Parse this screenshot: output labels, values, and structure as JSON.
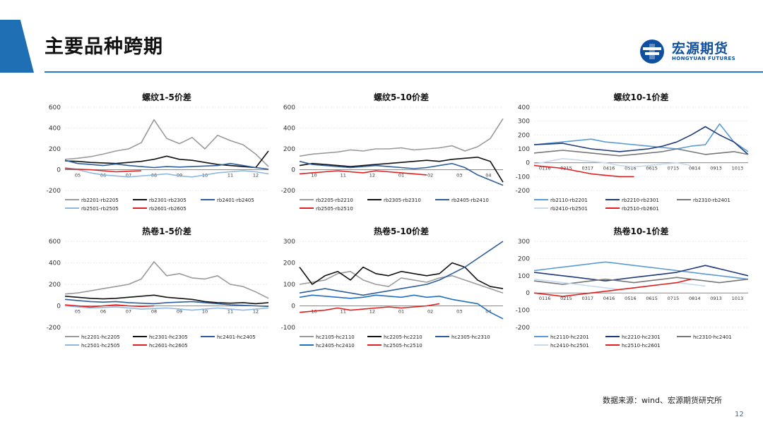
{
  "page": {
    "title": "主要品种跨期",
    "logo_cn": "宏源期货",
    "logo_en": "HONGYUAN FUTURES",
    "source": "数据来源：wind、宏源期货研究所",
    "page_number": "12",
    "brand_color": "#1f6fb5"
  },
  "chart_data": [
    {
      "id": "rb15",
      "type": "line",
      "title": "螺纹1-5价差",
      "ylim": [
        -200,
        600
      ],
      "yticks": [
        -200,
        0,
        200,
        400,
        600
      ],
      "xticks": [
        "05",
        "06",
        "07",
        "08",
        "09",
        "10",
        "11",
        "12"
      ],
      "series": [
        {
          "name": "rb2201-rb2205",
          "color": "#9a9a9a",
          "values": [
            100,
            110,
            125,
            150,
            180,
            200,
            260,
            480,
            300,
            250,
            310,
            200,
            330,
            280,
            240,
            150,
            30
          ]
        },
        {
          "name": "rb2301-rb2305",
          "color": "#111111",
          "values": [
            85,
            80,
            70,
            65,
            60,
            70,
            80,
            100,
            130,
            100,
            90,
            70,
            50,
            40,
            30,
            20,
            180
          ]
        },
        {
          "name": "rb2401-rb2405",
          "color": "#2f5d9e",
          "values": [
            90,
            60,
            50,
            40,
            55,
            40,
            30,
            20,
            30,
            25,
            30,
            35,
            40,
            60,
            40,
            20,
            5
          ]
        },
        {
          "name": "rb2501-rb2505",
          "color": "#8fb8e0",
          "values": [
            20,
            0,
            -30,
            -50,
            -60,
            -70,
            -60,
            -50,
            -40,
            -60,
            -70,
            -50,
            -30,
            -20,
            -10,
            -20,
            -40
          ]
        },
        {
          "name": "rb2601-rb2605",
          "color": "#e02020",
          "values": [
            10,
            5,
            0,
            -10,
            -20,
            -15,
            -10
          ]
        }
      ]
    },
    {
      "id": "rb510",
      "type": "line",
      "title": "螺纹5-10价差",
      "ylim": [
        -200,
        600
      ],
      "yticks": [
        -200,
        0,
        200,
        400,
        600
      ],
      "xticks": [
        "10",
        "11",
        "12",
        "01",
        "02",
        "03",
        "04"
      ],
      "series": [
        {
          "name": "rb2205-rb2210",
          "color": "#9a9a9a",
          "values": [
            130,
            150,
            160,
            170,
            190,
            180,
            200,
            200,
            210,
            190,
            200,
            210,
            230,
            180,
            220,
            300,
            490
          ]
        },
        {
          "name": "rb2305-rb2310",
          "color": "#111111",
          "values": [
            40,
            60,
            50,
            40,
            30,
            40,
            50,
            60,
            70,
            80,
            90,
            80,
            100,
            110,
            120,
            80,
            -120
          ]
        },
        {
          "name": "rb2405-rb2410",
          "color": "#2f5d9e",
          "values": [
            80,
            50,
            40,
            30,
            20,
            30,
            40,
            30,
            20,
            10,
            20,
            40,
            60,
            20,
            -50,
            -100,
            -150
          ]
        },
        {
          "name": "rb2505-rb2510",
          "color": "#e02020",
          "values": [
            -40,
            -30,
            -20,
            -10,
            -20,
            -30,
            -10,
            -20,
            -30,
            -40,
            -50
          ]
        }
      ]
    },
    {
      "id": "rb101",
      "type": "line",
      "title": "螺纹10-1价差",
      "ylim": [
        -200,
        400
      ],
      "yticks": [
        -200,
        -100,
        0,
        100,
        200,
        300,
        400
      ],
      "xticks": [
        "0116",
        "0215",
        "0317",
        "0416",
        "0516",
        "0615",
        "0715",
        "0814",
        "0913",
        "1013"
      ],
      "series": [
        {
          "name": "rb2110-rb2201",
          "color": "#5b9bd5",
          "values": [
            130,
            140,
            150,
            160,
            170,
            150,
            140,
            130,
            120,
            110,
            100,
            120,
            130,
            280,
            150,
            80
          ]
        },
        {
          "name": "rb2210-rb2301",
          "color": "#1f3a7a",
          "values": [
            130,
            135,
            140,
            120,
            100,
            90,
            80,
            90,
            100,
            120,
            150,
            200,
            260,
            200,
            150,
            60
          ]
        },
        {
          "name": "rb2310-rb2401",
          "color": "#777777",
          "values": [
            70,
            80,
            90,
            80,
            70,
            60,
            50,
            60,
            70,
            80,
            100,
            80,
            60,
            70,
            80,
            60
          ]
        },
        {
          "name": "rb2410-rb2501",
          "color": "#c7d9ee",
          "values": [
            -10,
            10,
            30,
            20,
            10,
            0,
            -20,
            -30,
            -20,
            -10,
            0,
            -20
          ]
        },
        {
          "name": "rb2510-rb2601",
          "color": "#e02020",
          "values": [
            -20,
            -30,
            -40,
            -60,
            -80,
            -90,
            -100,
            -100
          ]
        }
      ]
    },
    {
      "id": "hc15",
      "type": "line",
      "title": "热卷1-5价差",
      "ylim": [
        -200,
        600
      ],
      "yticks": [
        -200,
        0,
        200,
        400,
        600
      ],
      "xticks": [
        "05",
        "06",
        "07",
        "08",
        "09",
        "10",
        "11",
        "12"
      ],
      "series": [
        {
          "name": "hc2201-hc2205",
          "color": "#9a9a9a",
          "values": [
            110,
            120,
            140,
            160,
            180,
            200,
            250,
            410,
            280,
            300,
            260,
            250,
            280,
            200,
            180,
            130,
            70
          ]
        },
        {
          "name": "hc2301-hc2305",
          "color": "#111111",
          "values": [
            90,
            80,
            70,
            65,
            70,
            80,
            90,
            100,
            80,
            70,
            60,
            40,
            30,
            25,
            30,
            20,
            30
          ]
        },
        {
          "name": "hc2401-hc2405",
          "color": "#2f5d9e",
          "values": [
            60,
            50,
            40,
            35,
            40,
            30,
            25,
            20,
            30,
            35,
            40,
            30,
            20,
            10,
            5,
            0,
            -5
          ]
        },
        {
          "name": "hc2501-hc2505",
          "color": "#8fb8e0",
          "values": [
            0,
            -10,
            -20,
            -15,
            -10,
            -20,
            -30,
            -25,
            -20,
            -30,
            -40,
            -30,
            -20,
            -30,
            -40,
            -30,
            -20
          ]
        },
        {
          "name": "hc2601-hc2605",
          "color": "#e02020",
          "values": [
            10,
            0,
            -10,
            0,
            10,
            0,
            -5,
            0
          ]
        }
      ]
    },
    {
      "id": "hc510",
      "type": "line",
      "title": "热卷5-10价差",
      "ylim": [
        -100,
        300
      ],
      "yticks": [
        -100,
        0,
        100,
        200,
        300
      ],
      "xticks": [
        "10",
        "11",
        "12",
        "01",
        "02",
        "03",
        "04"
      ],
      "series": [
        {
          "name": "hc2105-hc2110",
          "color": "#9a9a9a",
          "values": [
            100,
            110,
            120,
            150,
            160,
            120,
            100,
            90,
            130,
            120,
            110,
            130,
            140,
            120,
            100,
            80,
            60
          ]
        },
        {
          "name": "hc2205-hc2210",
          "color": "#111111",
          "values": [
            180,
            100,
            140,
            160,
            120,
            180,
            150,
            140,
            160,
            150,
            140,
            150,
            200,
            180,
            120,
            90,
            80
          ]
        },
        {
          "name": "hc2305-hc2310",
          "color": "#2f5d9e",
          "values": [
            60,
            70,
            80,
            70,
            60,
            50,
            60,
            70,
            80,
            90,
            100,
            120,
            150,
            180,
            220,
            260,
            300
          ]
        },
        {
          "name": "hc2405-hc2410",
          "color": "#1f70c0",
          "values": [
            40,
            50,
            45,
            40,
            35,
            40,
            50,
            45,
            40,
            50,
            40,
            45,
            30,
            20,
            10,
            -30,
            -60
          ]
        },
        {
          "name": "hc2505-hc2510",
          "color": "#e02020",
          "values": [
            -30,
            -25,
            -20,
            -10,
            -20,
            -15,
            -10,
            -5,
            -10,
            -5,
            0,
            10
          ]
        }
      ]
    },
    {
      "id": "hc101",
      "type": "line",
      "title": "热卷10-1价差",
      "ylim": [
        -200,
        300
      ],
      "yticks": [
        -200,
        -100,
        0,
        100,
        200,
        300
      ],
      "xticks": [
        "0116",
        "0215",
        "0317",
        "0416",
        "0516",
        "0615",
        "0715",
        "0814",
        "0913",
        "1013"
      ],
      "series": [
        {
          "name": "hc2110-hc2201",
          "color": "#5b9bd5",
          "values": [
            130,
            140,
            150,
            160,
            170,
            180,
            170,
            160,
            150,
            140,
            130,
            120,
            110,
            100,
            90,
            80
          ]
        },
        {
          "name": "hc2210-hc2301",
          "color": "#1f3a7a",
          "values": [
            120,
            110,
            100,
            90,
            80,
            70,
            80,
            90,
            100,
            110,
            120,
            140,
            160,
            140,
            120,
            100
          ]
        },
        {
          "name": "hc2310-hc2401",
          "color": "#777777",
          "values": [
            70,
            60,
            50,
            60,
            70,
            80,
            70,
            60,
            70,
            80,
            90,
            80,
            70,
            60,
            70,
            80
          ]
        },
        {
          "name": "hc2410-hc2501",
          "color": "#c7d9ee",
          "values": [
            80,
            70,
            60,
            50,
            40,
            30,
            20,
            30,
            40,
            50,
            60,
            50,
            40
          ]
        },
        {
          "name": "hc2510-hc2601",
          "color": "#e02020",
          "values": [
            0,
            -10,
            -20,
            -10,
            0,
            10,
            20,
            30,
            40,
            50,
            60,
            80
          ]
        }
      ]
    }
  ]
}
